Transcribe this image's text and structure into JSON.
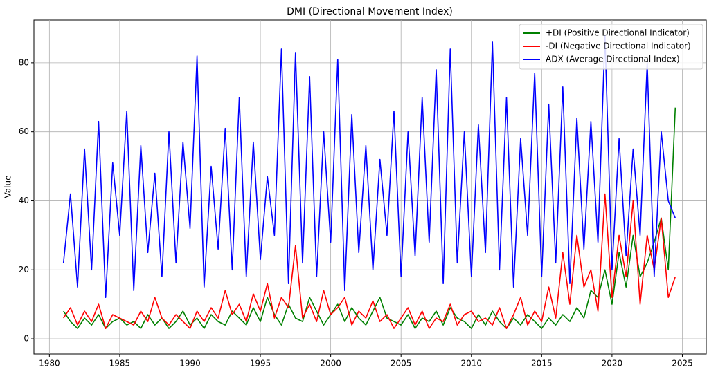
{
  "chart_data": {
    "type": "line",
    "title": "DMI (Directional Movement Index)",
    "ylabel": "Value",
    "x": [
      1981,
      1981.5,
      1982,
      1982.5,
      1983,
      1983.5,
      1984,
      1984.5,
      1985,
      1985.5,
      1986,
      1986.5,
      1987,
      1987.5,
      1988,
      1988.5,
      1989,
      1989.5,
      1990,
      1990.5,
      1991,
      1991.5,
      1992,
      1992.5,
      1993,
      1993.5,
      1994,
      1994.5,
      1995,
      1995.5,
      1996,
      1996.5,
      1997,
      1997.5,
      1998,
      1998.5,
      1999,
      1999.5,
      2000,
      2000.5,
      2001,
      2001.5,
      2002,
      2002.5,
      2003,
      2003.5,
      2004,
      2004.5,
      2005,
      2005.5,
      2006,
      2006.5,
      2007,
      2007.5,
      2008,
      2008.5,
      2009,
      2009.5,
      2010,
      2010.5,
      2011,
      2011.5,
      2012,
      2012.5,
      2013,
      2013.5,
      2014,
      2014.5,
      2015,
      2015.5,
      2016,
      2016.5,
      2017,
      2017.5,
      2018,
      2018.5,
      2019,
      2019.5,
      2020,
      2020.5,
      2021,
      2021.5,
      2022,
      2022.5,
      2023,
      2023.5,
      2024,
      2024.5
    ],
    "series": [
      {
        "name": "+DI (Positive Directional Indicator)",
        "color": "#008000",
        "values": [
          8,
          5,
          3,
          6,
          4,
          7,
          3,
          5,
          6,
          4,
          5,
          3,
          7,
          4,
          6,
          3,
          5,
          8,
          4,
          6,
          3,
          7,
          5,
          4,
          8,
          6,
          4,
          9,
          5,
          12,
          7,
          4,
          10,
          6,
          5,
          12,
          8,
          4,
          7,
          10,
          5,
          9,
          6,
          4,
          8,
          12,
          6,
          5,
          4,
          7,
          3,
          6,
          5,
          8,
          4,
          9,
          6,
          5,
          3,
          7,
          4,
          8,
          5,
          3,
          6,
          4,
          7,
          5,
          3,
          6,
          4,
          7,
          5,
          9,
          6,
          14,
          12,
          20,
          10,
          25,
          15,
          30,
          18,
          22,
          28,
          35,
          20,
          67
        ]
      },
      {
        "name": "-DI (Negative Directional Indicator)",
        "color": "#ff0000",
        "values": [
          6,
          9,
          4,
          8,
          5,
          10,
          3,
          7,
          6,
          5,
          4,
          8,
          5,
          12,
          6,
          4,
          7,
          5,
          3,
          8,
          5,
          9,
          6,
          14,
          7,
          10,
          5,
          13,
          8,
          16,
          6,
          12,
          9,
          27,
          6,
          10,
          5,
          14,
          7,
          9,
          12,
          4,
          8,
          6,
          11,
          5,
          7,
          3,
          6,
          9,
          4,
          8,
          3,
          6,
          5,
          10,
          4,
          7,
          8,
          5,
          6,
          4,
          9,
          3,
          7,
          12,
          4,
          8,
          5,
          15,
          6,
          25,
          10,
          30,
          15,
          20,
          8,
          42,
          12,
          30,
          18,
          40,
          10,
          30,
          20,
          35,
          12,
          18
        ]
      },
      {
        "name": "ADX (Average Directional Index)",
        "color": "#0000ff",
        "values": [
          22,
          42,
          15,
          55,
          20,
          63,
          12,
          51,
          30,
          66,
          14,
          56,
          25,
          48,
          18,
          60,
          22,
          57,
          32,
          82,
          15,
          50,
          26,
          61,
          20,
          70,
          18,
          57,
          23,
          47,
          30,
          84,
          16,
          83,
          22,
          76,
          18,
          60,
          28,
          81,
          14,
          65,
          25,
          56,
          20,
          52,
          30,
          66,
          18,
          60,
          24,
          70,
          28,
          78,
          16,
          84,
          22,
          60,
          18,
          62,
          25,
          86,
          20,
          70,
          15,
          58,
          30,
          77,
          18,
          68,
          22,
          73,
          16,
          64,
          26,
          63,
          28,
          88,
          20,
          58,
          24,
          55,
          30,
          80,
          18,
          60,
          40,
          35
        ]
      }
    ],
    "xlim": [
      1978.9,
      2026.7
    ],
    "xticks": [
      1980,
      1985,
      1990,
      1995,
      2000,
      2005,
      2010,
      2015,
      2020,
      2025
    ],
    "ylim": [
      -4.4,
      92.4
    ],
    "yticks": [
      0,
      20,
      40,
      60,
      80
    ],
    "grid": true,
    "legend": "upper right"
  }
}
